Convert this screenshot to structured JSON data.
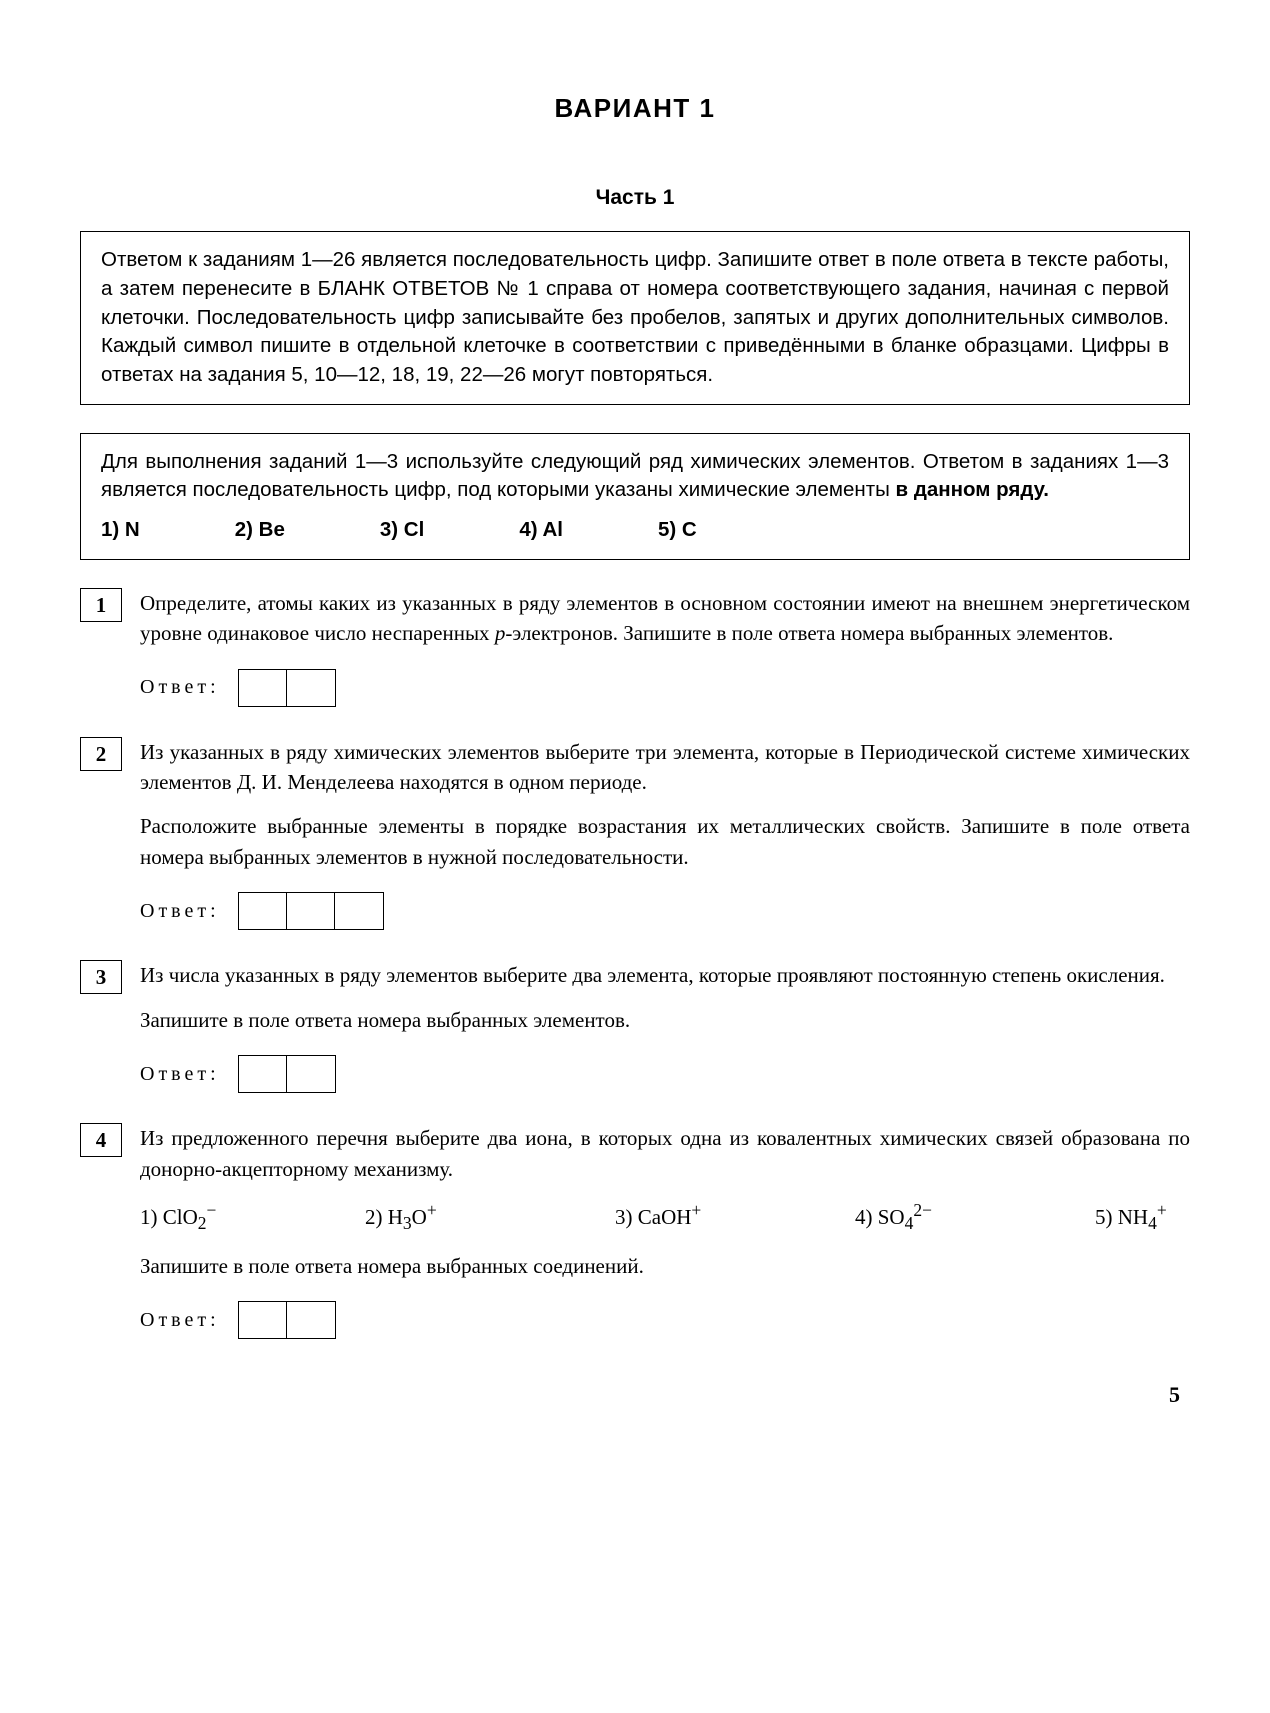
{
  "title": "ВАРИАНТ  1",
  "part_heading": "Часть 1",
  "box1": {
    "text_html": "Ответом к заданиям 1—26 является последовательность цифр. Запишите ответ в поле ответа в тексте работы, а затем перенесите в БЛАНК ОТВЕТОВ № 1 справа от номера соответствующего задания, начиная с первой клеточки. Последовательность цифр записывайте без пробелов, запятых и других дополнительных символов. Каждый символ пишите в отдельной клеточке в соответствии с приведёнными в бланке образцами. Цифры в ответах на задания 5, 10—12, 18, 19, 22—26 могут повторяться."
  },
  "box2": {
    "text_html": "Для выполнения заданий 1—3 используйте следующий ряд химических элементов. Ответом в заданиях 1—3 является последовательность цифр, под которыми указаны химические элементы <b>в данном ряду.</b>",
    "elements": [
      "1) N",
      "2) Be",
      "3) Cl",
      "4) Al",
      "5) C"
    ]
  },
  "questions": [
    {
      "num": "1",
      "paragraphs": [
        "Определите, атомы каких из указанных в ряду элементов в основном состоянии имеют на внешнем энергетическом уровне одинаковое число неспаренных <span class=\"italic\">p</span>-электронов. Запишите в поле ответа номера выбранных элементов."
      ],
      "answer_cells": 2
    },
    {
      "num": "2",
      "paragraphs": [
        "Из указанных в ряду химических элементов выберите три элемента, которые в Периодической системе химических элементов Д. И. Менделеева находятся в одном периоде.",
        "Расположите выбранные элементы в порядке возрастания их металлических свойств. Запишите в поле ответа номера выбранных элементов в нужной последовательности."
      ],
      "answer_cells": 3
    },
    {
      "num": "3",
      "paragraphs": [
        "Из числа указанных в ряду элементов выберите два элемента, которые проявляют постоянную степень окисления.",
        "Запишите в поле ответа номера выбранных элементов."
      ],
      "answer_cells": 2
    },
    {
      "num": "4",
      "paragraphs": [
        "Из предложенного перечня выберите два иона, в которых одна из ковалентных химических связей образована по донорно-акцепторному механизму."
      ],
      "ions": [
        "1) ClO<sub>2</sub><sup>−</sup>",
        "2) H<sub>3</sub>O<sup>+</sup>",
        "3) CaOH<sup>+</sup>",
        "4) SO<sub>4</sub><sup>2−</sup>",
        "5) NH<sub>4</sub><sup>+</sup>"
      ],
      "after_ions": "Запишите в поле ответа номера выбранных соединений.",
      "answer_cells": 2
    }
  ],
  "answer_label": "Ответ:",
  "page_number": "5"
}
